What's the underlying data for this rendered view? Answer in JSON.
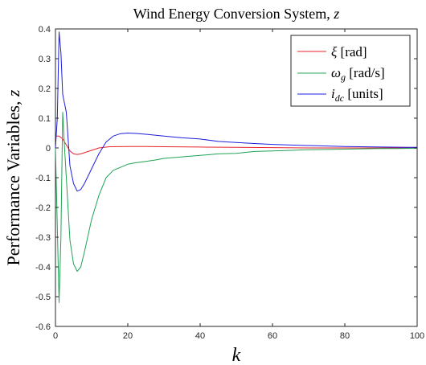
{
  "chart_data": {
    "type": "line",
    "title": "Wind Energy Conversion System, z",
    "xlabel": "k",
    "ylabel": "Performance Variables, z",
    "xlim": [
      0,
      100
    ],
    "ylim": [
      -0.6,
      0.4
    ],
    "xticks": [
      "0",
      "20",
      "40",
      "60",
      "80",
      "100"
    ],
    "yticks": [
      "-0.6",
      "-0.5",
      "-0.4",
      "-0.3",
      "-0.2",
      "-0.1",
      "0",
      "0.1",
      "0.2",
      "0.3",
      "0.4"
    ],
    "legend_position": "top-right",
    "series": [
      {
        "name": "ξ [rad]",
        "color": "#e8232b",
        "x": [
          0,
          1,
          2,
          3,
          4,
          5,
          6,
          7,
          8,
          10,
          12,
          15,
          20,
          25,
          30,
          40,
          50,
          60,
          70,
          80,
          90,
          100
        ],
        "y": [
          0.04,
          0.04,
          0.03,
          0.01,
          -0.01,
          -0.02,
          -0.022,
          -0.02,
          -0.016,
          -0.008,
          0.0,
          0.004,
          0.005,
          0.005,
          0.004,
          0.003,
          0.002,
          0.001,
          0.0,
          0.0,
          0.0,
          0.0
        ]
      },
      {
        "name": "ω_g [rad/s]",
        "color": "#20a354",
        "x": [
          0,
          1,
          1.5,
          2,
          2.5,
          3,
          4,
          5,
          6,
          7,
          8,
          10,
          12,
          14,
          16,
          18,
          20,
          22,
          25,
          28,
          30,
          35,
          40,
          45,
          50,
          55,
          60,
          65,
          70,
          75,
          80,
          85,
          90,
          95,
          100
        ],
        "y": [
          0.0,
          -0.52,
          -0.3,
          0.12,
          0.0,
          -0.1,
          -0.31,
          -0.39,
          -0.415,
          -0.4,
          -0.35,
          -0.24,
          -0.16,
          -0.1,
          -0.075,
          -0.065,
          -0.055,
          -0.05,
          -0.045,
          -0.04,
          -0.035,
          -0.03,
          -0.025,
          -0.02,
          -0.018,
          -0.012,
          -0.01,
          -0.008,
          -0.006,
          -0.005,
          -0.004,
          -0.003,
          -0.002,
          -0.002,
          -0.001
        ]
      },
      {
        "name": "i_dc [units]",
        "color": "#1d1de0",
        "x": [
          0,
          0.5,
          1,
          1.5,
          2,
          3,
          4,
          5,
          6,
          7,
          8,
          10,
          12,
          14,
          16,
          18,
          20,
          22,
          25,
          30,
          35,
          40,
          45,
          50,
          55,
          60,
          70,
          80,
          90,
          100
        ],
        "y": [
          0.0,
          0.1,
          0.39,
          0.32,
          0.18,
          0.12,
          -0.06,
          -0.12,
          -0.145,
          -0.14,
          -0.12,
          -0.07,
          -0.02,
          0.02,
          0.04,
          0.048,
          0.05,
          0.049,
          0.046,
          0.04,
          0.034,
          0.03,
          0.022,
          0.018,
          0.015,
          0.012,
          0.008,
          0.005,
          0.003,
          0.002
        ]
      }
    ]
  }
}
